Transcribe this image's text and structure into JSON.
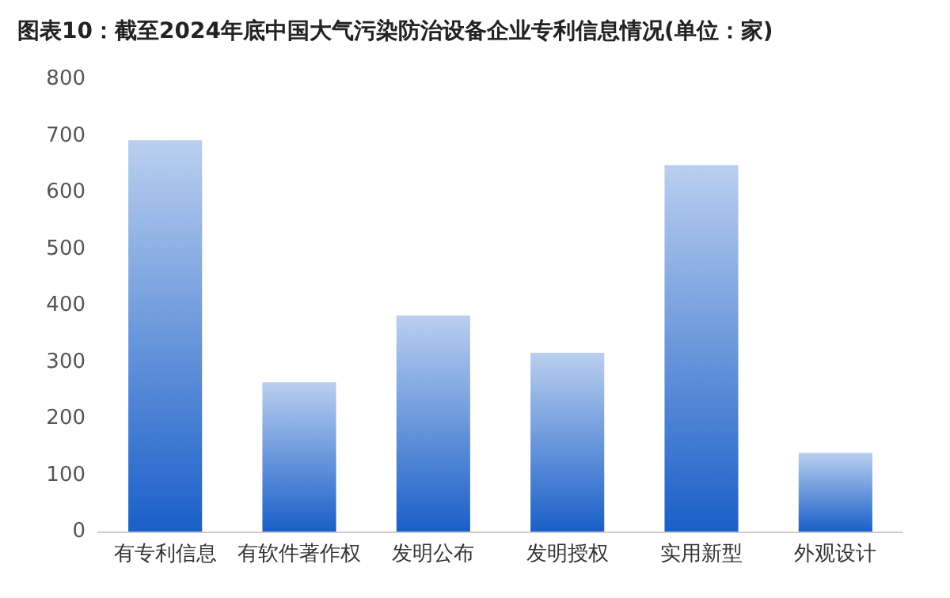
{
  "chart_data": {
    "type": "bar",
    "title": "图表10：截至2024年底中国大气污染防治设备企业专利信息情况(单位：家)",
    "categories": [
      "有专利信息",
      "有软件著作权",
      "发明公布",
      "发明授权",
      "实用新型",
      "外观设计"
    ],
    "values": [
      692,
      264,
      382,
      316,
      648,
      139
    ],
    "color": "#1a5fc8",
    "ylim": [
      0,
      800
    ],
    "yticks": [
      0,
      100,
      200,
      300,
      400,
      500,
      600,
      700,
      800
    ],
    "grid": false
  }
}
